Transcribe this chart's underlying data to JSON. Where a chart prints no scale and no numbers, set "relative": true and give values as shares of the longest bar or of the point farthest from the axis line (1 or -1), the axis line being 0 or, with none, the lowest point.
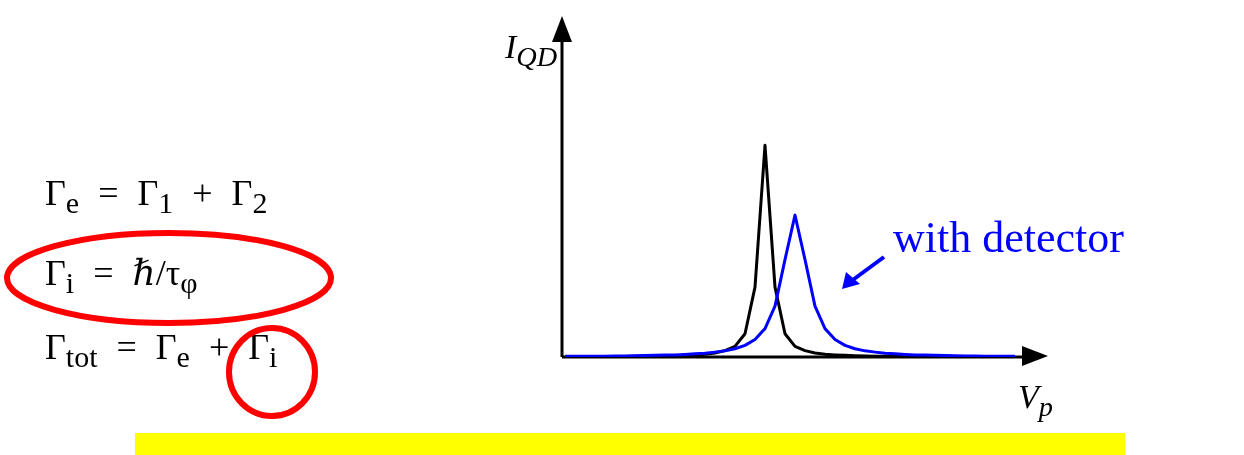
{
  "chart_data": {
    "type": "line",
    "relative": true,
    "ylabel": "I$_{QD}$",
    "xlabel": "V$_{p}$",
    "annotations": [
      "Γ$_{e}$ = Γ$_{1}$ + Γ$_{2}$",
      "Γ$_{i}$ = ℏ/τ$_{φ}$",
      "Γ$_{tot}$ = Γ$_{e}$ + Γ$_{i}$",
      "with detector"
    ],
    "categories": [
      null,
      null,
      null,
      null,
      null,
      null,
      null,
      null,
      null,
      null,
      null,
      null,
      null,
      null,
      null,
      null,
      null,
      null,
      null,
      null,
      null,
      null,
      null,
      null,
      null,
      null,
      null,
      null,
      null,
      null,
      null,
      null,
      null,
      null,
      null,
      null,
      null,
      null,
      null,
      null,
      null,
      null,
      null,
      null,
      null,
      null
    ],
    "series": [
      {
        "color": "#000000",
        "values": [
          null,
          null,
          null,
          null,
          null,
          0.002,
          0.0025,
          0.003,
          0.003,
          0.004,
          0.005,
          0.006,
          0.008,
          0.01,
          0.013,
          0.019,
          0.03,
          0.05,
          0.11,
          0.33,
          1,
          0.33,
          0.11,
          0.05,
          0.03,
          0.019,
          0.013,
          0.01,
          0.008,
          0.006,
          0.005,
          0.004,
          0.003,
          0.003,
          0.003,
          0.002,
          0.002,
          0.002,
          0.002,
          0.002,
          0.001,
          0.001,
          0.001,
          0.001,
          0.001,
          0.001
        ]
      },
      {
        "color": "#0000ff",
        "values": [
          0.003,
          0.003,
          0.003,
          0.004,
          0.004,
          0.005,
          0.005,
          0.006,
          0.007,
          0.008,
          0.009,
          0.01,
          0.012,
          0.015,
          0.018,
          0.023,
          0.029,
          0.039,
          0.055,
          0.083,
          0.134,
          0.24,
          0.46,
          0.67,
          0.46,
          0.24,
          0.134,
          0.083,
          0.055,
          0.039,
          0.029,
          0.023,
          0.018,
          0.015,
          0.012,
          0.01,
          0.009,
          0.008,
          0.007,
          0.006,
          0.005,
          0.005,
          0.004,
          0.004,
          0.003,
          0.003
        ]
      }
    ]
  }
}
